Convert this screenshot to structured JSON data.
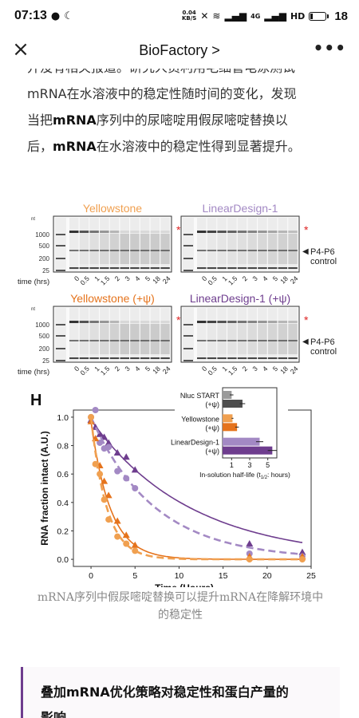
{
  "status_bar": {
    "time": "07:13",
    "net_speed_value": "0.04",
    "net_speed_unit": "KB/S",
    "network_label": "4G",
    "battery": "18"
  },
  "nav": {
    "title": "BioFactory >"
  },
  "article": {
    "line0": "并没有相关报道。研究人员利用毛细管电泳测试",
    "line1": "mRNA在水溶液中的稳定性随时间的变化，发现",
    "line2_pre": "当把",
    "line2_b": "mRNA",
    "line2_post": "序列中的尿嘧啶用假尿嘧啶替换以",
    "line3_pre": "后，",
    "line3_b": "mRNA",
    "line3_post": "在水溶液中的稳定性得到显著提升。"
  },
  "figure": {
    "gels": [
      {
        "title": "Yellowstone",
        "color": "#f0a050"
      },
      {
        "title": "LinearDesign-1",
        "color": "#a389c4"
      },
      {
        "title": "Yellowstone (+ψ)",
        "color": "#e5731c"
      },
      {
        "title": "LinearDesign-1 (+ψ)",
        "color": "#6e3d8e"
      }
    ],
    "nt_label": "nt",
    "ladder_labels": [
      "1000",
      "500",
      "200",
      "25"
    ],
    "time_label": "time (hrs)",
    "time_points": [
      "0",
      "0.5",
      "1",
      "1.5",
      "2",
      "3",
      "4",
      "5",
      "18",
      "24"
    ],
    "star": "*",
    "p4p6_label_1": "P4-P6",
    "p4p6_label_2": "control",
    "panel_letter": "H"
  },
  "chart_data": {
    "type": "scatter",
    "xlabel": "Time (Hours)",
    "ylabel": "RNA fraction intact (A.U.)",
    "xlim": [
      -2,
      25
    ],
    "ylim": [
      -0.05,
      1.05
    ],
    "xticks": [
      0,
      5,
      10,
      15,
      20,
      25
    ],
    "yticks": [
      0.0,
      0.2,
      0.4,
      0.6,
      0.8,
      1.0
    ],
    "series": [
      {
        "color": "#6e3d8e",
        "line": "solid",
        "marker": "triangle",
        "x": [
          0,
          0.5,
          1,
          1.5,
          2,
          3,
          4,
          5,
          18,
          24
        ],
        "y": [
          0.98,
          0.93,
          0.88,
          0.86,
          0.82,
          0.75,
          0.72,
          0.63,
          0.11,
          0.05
        ]
      },
      {
        "color": "#a389c4",
        "line": "dashed",
        "marker": "circle",
        "x": [
          0,
          0.5,
          1,
          1.5,
          2,
          3,
          4,
          5,
          18,
          24
        ],
        "y": [
          1.0,
          1.05,
          0.82,
          0.78,
          0.79,
          0.62,
          0.57,
          0.5,
          0.04,
          0.02
        ]
      },
      {
        "color": "#e5731c",
        "line": "solid",
        "marker": "triangle",
        "x": [
          0,
          0.5,
          1,
          1.5,
          2,
          3,
          4,
          5,
          18,
          24
        ],
        "y": [
          0.97,
          0.85,
          0.66,
          0.55,
          0.45,
          0.27,
          0.17,
          0.1,
          0.02,
          0.02
        ]
      },
      {
        "color": "#f0a050",
        "line": "dashed",
        "marker": "circle",
        "x": [
          0,
          0.5,
          1,
          1.5,
          2,
          3,
          4,
          5,
          18,
          24
        ],
        "y": [
          1.0,
          0.67,
          0.6,
          0.42,
          0.28,
          0.16,
          0.11,
          0.06,
          0.0,
          0.0
        ]
      }
    ],
    "inset": {
      "type": "bar",
      "xlabel": "In-solution half-life (t",
      "xlabel_sub": "1/2",
      "xlabel_end": ": hours)",
      "xticks": [
        1,
        3,
        5
      ],
      "xlim": [
        0,
        6
      ],
      "groups": [
        {
          "label_1": "Nluc START",
          "label_2": "(+ψ)",
          "bars": [
            {
              "value": 1.0,
              "err": 0.2,
              "color": "#9a9a9a"
            },
            {
              "value": 2.2,
              "err": 0.3,
              "color": "#4e4e4e"
            }
          ]
        },
        {
          "label_1": "Yellowstone",
          "label_2": "(+ψ)",
          "bars": [
            {
              "value": 1.1,
              "err": 0.1,
              "color": "#f0a050"
            },
            {
              "value": 1.6,
              "err": 0.2,
              "color": "#e5731c"
            }
          ]
        },
        {
          "label_1": "LinearDesign-1",
          "label_2": "(+ψ)",
          "bars": [
            {
              "value": 4.1,
              "err": 0.4,
              "color": "#a389c4"
            },
            {
              "value": 5.5,
              "err": 0.5,
              "color": "#6e3d8e"
            }
          ]
        }
      ]
    }
  },
  "caption": {
    "line1": "mRNA序列中假尿嘧啶替换可以提升mRNA在降解环境中",
    "line2": "的稳定性"
  },
  "callout": {
    "line1": "叠加mRNA优化策略对稳定性和蛋白产量的",
    "line2": "影响"
  }
}
